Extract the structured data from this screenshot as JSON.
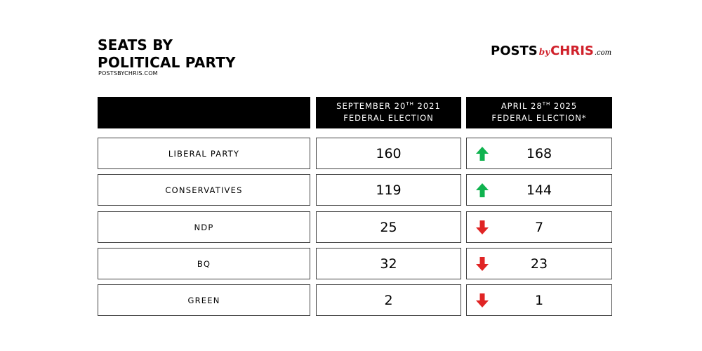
{
  "header": {
    "title_line1": "SEATS BY",
    "title_line2": "POLITICAL PARTY",
    "subtitle": "POSTSBYCHRIS.COM"
  },
  "logo": {
    "posts": "POSTS",
    "by": "by",
    "chris": "CHRIS",
    "com": ".com"
  },
  "columns": {
    "col2021": {
      "line1_pre": "SEPTEMBER 20",
      "line1_sup": "TH",
      "line1_post": " 2021",
      "line2": "FEDERAL ELECTION"
    },
    "col2025": {
      "line1_pre": "APRIL 28",
      "line1_sup": "TH",
      "line1_post": " 2025",
      "line2": "FEDERAL ELECTION*"
    }
  },
  "colors": {
    "up": "#10b34f",
    "down": "#e02424",
    "header_bg": "#000000"
  },
  "chart_data": {
    "type": "table",
    "title": "SEATS BY POLITICAL PARTY",
    "columns": [
      "",
      "SEPTEMBER 20TH 2021 FEDERAL ELECTION",
      "APRIL 28TH 2025 FEDERAL ELECTION*"
    ],
    "rows": [
      {
        "party": "LIBERAL PARTY",
        "seats_2021": "160",
        "seats_2025": "168",
        "change": "up"
      },
      {
        "party": "CONSERVATIVES",
        "seats_2021": "119",
        "seats_2025": "144",
        "change": "up"
      },
      {
        "party": "NDP",
        "seats_2021": "25",
        "seats_2025": "7",
        "change": "down"
      },
      {
        "party": "BQ",
        "seats_2021": "32",
        "seats_2025": "23",
        "change": "down"
      },
      {
        "party": "GREEN",
        "seats_2021": "2",
        "seats_2025": "1",
        "change": "down"
      }
    ]
  }
}
